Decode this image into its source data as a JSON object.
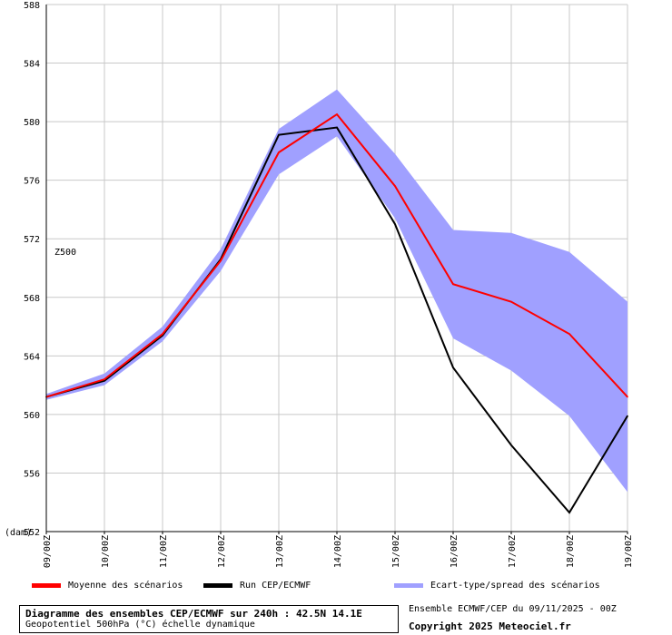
{
  "chart_data": {
    "type": "line",
    "ylabel": "(dam)",
    "annotation": "Z500",
    "ylim": [
      552,
      588
    ],
    "yticks": [
      552,
      556,
      560,
      564,
      568,
      572,
      576,
      580,
      584,
      588
    ],
    "categories": [
      "09/00Z",
      "10/00Z",
      "11/00Z",
      "12/00Z",
      "13/00Z",
      "14/00Z",
      "15/00Z",
      "16/00Z",
      "17/00Z",
      "18/00Z",
      "19/00Z"
    ],
    "series": [
      {
        "name": "Moyenne des scénarios",
        "color": "#ff0000",
        "values": [
          561.2,
          562.4,
          565.5,
          570.5,
          577.9,
          580.5,
          575.6,
          568.9,
          567.7,
          565.5,
          561.2
        ]
      },
      {
        "name": "Run CEP/ECMWF",
        "color": "#000000",
        "values": [
          561.2,
          562.3,
          565.4,
          570.6,
          579.1,
          579.6,
          573.0,
          563.2,
          557.9,
          553.3,
          559.9
        ]
      }
    ],
    "spread": {
      "name": "Ecart-type/spread des scénarios",
      "color": "#a0a0ff",
      "upper": [
        561.4,
        562.8,
        566.0,
        571.3,
        579.5,
        582.2,
        577.8,
        572.6,
        572.4,
        571.1,
        567.7
      ],
      "lower": [
        561.0,
        562.0,
        565.0,
        569.8,
        576.4,
        579.0,
        573.4,
        565.2,
        563.0,
        559.9,
        554.7
      ]
    },
    "grid": true
  },
  "legend": {
    "items": [
      {
        "label": "Moyenne des scénarios",
        "color": "#ff0000"
      },
      {
        "label": "Run CEP/ECMWF",
        "color": "#000000"
      },
      {
        "label": "Ecart-type/spread des scénarios",
        "color": "#a0a0ff"
      }
    ]
  },
  "footer": {
    "title": "Diagramme des ensembles CEP/ECMWF sur 240h : 42.5N 14.1E",
    "subtitle": "Geopotentiel 500hPa (°C) échelle dynamique",
    "run_info": "Ensemble ECMWF/CEP du 09/11/2025 - 00Z",
    "copyright": "Copyright 2025 Meteociel.fr"
  }
}
